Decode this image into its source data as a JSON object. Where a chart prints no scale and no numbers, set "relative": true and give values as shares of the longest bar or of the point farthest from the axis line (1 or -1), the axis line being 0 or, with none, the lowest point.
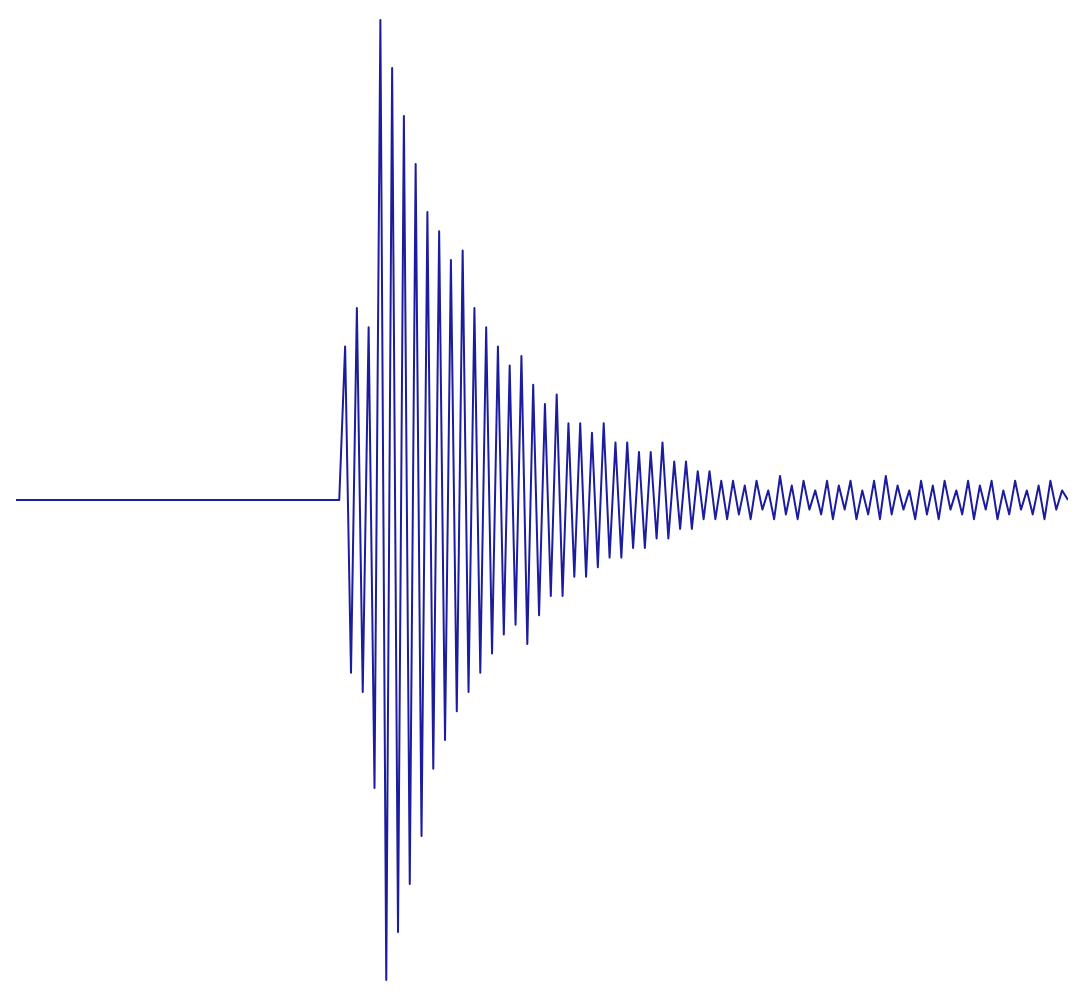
{
  "chart_data": {
    "type": "line",
    "relative": true,
    "categories": [
      null,
      null,
      null,
      null,
      null,
      null,
      null,
      null,
      null,
      null,
      null,
      null,
      null,
      null,
      null,
      null,
      null,
      null,
      null,
      null,
      null,
      null,
      null,
      null,
      null,
      null,
      null,
      null,
      null,
      null,
      null,
      null,
      null,
      null,
      null,
      null,
      null,
      null,
      null,
      null,
      null,
      null,
      null,
      null,
      null,
      null,
      null,
      null,
      null,
      null,
      null,
      null,
      null,
      null,
      null,
      null,
      null,
      null,
      null,
      null,
      null,
      null,
      null,
      null,
      null,
      null,
      null,
      null,
      null,
      null,
      null,
      null,
      null,
      null,
      null,
      null,
      null,
      null,
      null,
      null,
      null,
      null,
      null,
      null,
      null,
      null,
      null,
      null,
      null,
      null,
      null,
      null,
      null,
      null,
      null,
      null,
      null,
      null,
      null,
      null,
      null,
      null,
      null,
      null,
      null,
      null,
      null,
      null,
      null,
      null,
      null,
      null,
      null,
      null,
      null,
      null,
      null,
      null,
      null,
      null,
      null,
      null,
      null,
      null,
      null,
      null,
      null,
      null,
      null,
      null,
      null,
      null,
      null,
      null,
      null,
      null,
      null,
      null,
      null,
      null,
      null,
      null,
      null,
      null,
      null,
      null,
      null,
      null,
      null,
      null,
      null,
      null,
      null,
      null,
      null,
      null,
      null,
      null,
      null,
      null,
      null,
      null,
      null,
      null,
      null,
      null,
      null,
      null,
      null,
      null,
      null,
      null,
      null,
      null,
      null,
      null,
      null,
      null,
      null,
      null
    ],
    "series": [
      {
        "color": "#1c1c9e",
        "values": [
          0.5,
          0.5,
          0.5,
          0.5,
          0.5,
          0.5,
          0.5,
          0.5,
          0.5,
          0.5,
          0.5,
          0.5,
          0.5,
          0.5,
          0.5,
          0.5,
          0.5,
          0.5,
          0.5,
          0.5,
          0.5,
          0.5,
          0.5,
          0.5,
          0.5,
          0.5,
          0.5,
          0.5,
          0.5,
          0.5,
          0.5,
          0.5,
          0.5,
          0.5,
          0.5,
          0.5,
          0.5,
          0.5,
          0.5,
          0.5,
          0.5,
          0.5,
          0.5,
          0.5,
          0.5,
          0.5,
          0.5,
          0.5,
          0.5,
          0.5,
          0.5,
          0.5,
          0.5,
          0.5,
          0.5,
          0.5,
          0.66,
          0.32,
          0.7,
          0.3,
          0.68,
          0.2,
          1.0,
          0.0,
          0.95,
          0.05,
          0.9,
          0.1,
          0.85,
          0.15,
          0.8,
          0.22,
          0.78,
          0.25,
          0.75,
          0.28,
          0.76,
          0.3,
          0.7,
          0.32,
          0.68,
          0.34,
          0.66,
          0.36,
          0.64,
          0.37,
          0.65,
          0.35,
          0.62,
          0.38,
          0.6,
          0.4,
          0.61,
          0.4,
          0.58,
          0.42,
          0.58,
          0.42,
          0.57,
          0.43,
          0.58,
          0.44,
          0.56,
          0.44,
          0.56,
          0.45,
          0.55,
          0.45,
          0.55,
          0.46,
          0.56,
          0.46,
          0.54,
          0.47,
          0.54,
          0.47,
          0.53,
          0.48,
          0.53,
          0.48,
          0.52,
          0.48,
          0.52,
          0.485,
          0.515,
          0.48,
          0.52,
          0.49,
          0.51,
          0.48,
          0.525,
          0.485,
          0.515,
          0.48,
          0.52,
          0.49,
          0.51,
          0.485,
          0.52,
          0.48,
          0.515,
          0.49,
          0.52,
          0.48,
          0.51,
          0.485,
          0.52,
          0.48,
          0.525,
          0.485,
          0.515,
          0.49,
          0.51,
          0.48,
          0.52,
          0.485,
          0.515,
          0.48,
          0.52,
          0.49,
          0.51,
          0.485,
          0.52,
          0.48,
          0.515,
          0.49,
          0.52,
          0.48,
          0.51,
          0.485,
          0.52,
          0.49,
          0.51,
          0.485,
          0.515,
          0.48,
          0.52,
          0.49,
          0.51,
          0.5
        ]
      }
    ]
  }
}
